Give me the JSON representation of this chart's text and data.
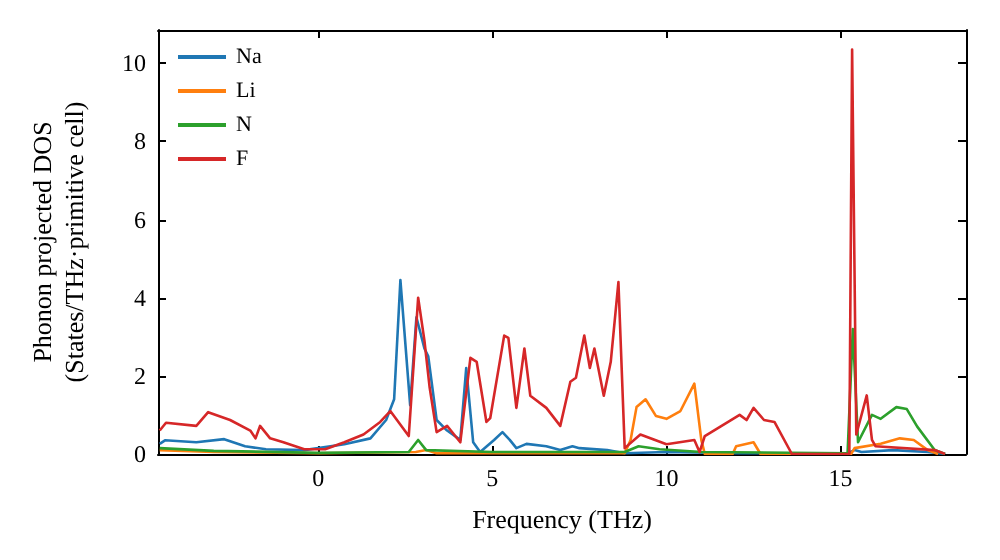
{
  "chart_data": {
    "type": "line",
    "xlabel": "Frequency (THz)",
    "ylabel": "Phonon projected DOS\n(States/THz·primitive cell)",
    "xlim": [
      -4.6,
      18.6
    ],
    "ylim": [
      0,
      10.85
    ],
    "xticks": [
      0,
      5,
      10,
      15
    ],
    "yticks": [
      0,
      2,
      4,
      6,
      8,
      10
    ],
    "grid": false,
    "legend": "top left",
    "marker": "none",
    "line_style": "solid",
    "series": [
      {
        "name": "Na",
        "color": "#1f77b4",
        "x": [
          -4.55,
          -4.4,
          -3.5,
          -2.7,
          -2.1,
          -1.5,
          -0.4,
          0.75,
          1.5,
          1.95,
          2.18,
          2.36,
          2.64,
          2.82,
          3.05,
          3.16,
          3.4,
          3.7,
          4.08,
          4.25,
          4.45,
          4.65,
          5.05,
          5.29,
          5.5,
          5.69,
          5.98,
          6.55,
          6.95,
          7.3,
          7.5,
          8.3,
          8.8,
          10,
          12,
          15.2,
          15.4,
          15.6,
          16.5,
          17.5,
          18
        ],
        "values": [
          0.26,
          0.35,
          0.3,
          0.38,
          0.2,
          0.12,
          0.1,
          0.25,
          0.4,
          0.87,
          1.4,
          4.45,
          1.25,
          3.5,
          2.7,
          2.5,
          0.87,
          0.6,
          0.36,
          2.2,
          0.3,
          0.05,
          0.36,
          0.56,
          0.36,
          0.15,
          0.26,
          0.2,
          0.1,
          0.2,
          0.15,
          0.1,
          0.02,
          0.05,
          0.02,
          0.02,
          0.1,
          0.05,
          0.1,
          0.05,
          0
        ]
      },
      {
        "name": "Li",
        "color": "#ff7f0e",
        "x": [
          -4.55,
          -3,
          0,
          2.8,
          3.1,
          3.4,
          8.8,
          8.97,
          9.14,
          9.4,
          9.7,
          10.0,
          10.4,
          10.8,
          11.0,
          11.1,
          11.9,
          12.0,
          12.5,
          12.7,
          15.3,
          15.4,
          16.15,
          16.7,
          17.1,
          17.5,
          17.8
        ],
        "values": [
          0.1,
          0.05,
          0.02,
          0.05,
          0.1,
          0.02,
          0.02,
          0.36,
          1.2,
          1.4,
          0.97,
          0.9,
          1.1,
          1.8,
          0.36,
          0,
          0,
          0.2,
          0.3,
          0,
          0,
          0.15,
          0.26,
          0.4,
          0.36,
          0.1,
          0
        ]
      },
      {
        "name": "N",
        "color": "#2ca02c",
        "x": [
          -4.55,
          -3,
          0,
          2.6,
          2.87,
          3.1,
          5,
          8.8,
          9.2,
          9.8,
          11,
          15.2,
          15.35,
          15.5,
          15.9,
          16.15,
          16.6,
          16.9,
          17.2,
          17.7,
          18
        ],
        "values": [
          0.15,
          0.08,
          0.03,
          0.05,
          0.36,
          0.1,
          0.05,
          0.05,
          0.2,
          0.12,
          0.05,
          0.02,
          3.2,
          0.3,
          1.0,
          0.9,
          1.2,
          1.15,
          0.7,
          0.1,
          0
        ]
      },
      {
        "name": "F",
        "color": "#d62728",
        "x": [
          -4.55,
          -4.37,
          -3.5,
          -3.16,
          -2.53,
          -1.95,
          -1.8,
          -1.67,
          -1.38,
          -1.0,
          -0.4,
          0.2,
          0.75,
          1.3,
          1.78,
          2.07,
          2.6,
          2.87,
          3.05,
          3.2,
          3.4,
          3.7,
          4.08,
          4.37,
          4.55,
          4.83,
          4.94,
          5.34,
          5.46,
          5.69,
          5.92,
          6.09,
          6.55,
          6.95,
          7.24,
          7.4,
          7.64,
          7.8,
          7.93,
          8.2,
          8.4,
          8.62,
          8.8,
          9.25,
          10.0,
          10.8,
          10.95,
          11.1,
          12.1,
          12.3,
          12.5,
          12.8,
          13.1,
          13.6,
          15.25,
          15.33,
          15.45,
          15.75,
          15.9,
          16.0,
          17.7,
          18.0
        ],
        "values": [
          0.6,
          0.8,
          0.72,
          1.07,
          0.87,
          0.6,
          0.4,
          0.72,
          0.4,
          0.3,
          0.12,
          0.12,
          0.3,
          0.5,
          0.82,
          1.1,
          0.46,
          4.0,
          2.9,
          1.7,
          0.56,
          0.72,
          0.3,
          2.46,
          2.36,
          0.82,
          0.92,
          3.03,
          2.97,
          1.18,
          2.7,
          1.49,
          1.18,
          0.72,
          1.85,
          1.95,
          3.03,
          2.2,
          2.7,
          1.49,
          2.36,
          4.4,
          0.15,
          0.5,
          0.25,
          0.36,
          0.05,
          0.46,
          1.0,
          0.87,
          1.18,
          0.87,
          0.82,
          0,
          0,
          10.35,
          0.5,
          1.5,
          0.36,
          0.2,
          0.1,
          0
        ]
      }
    ]
  }
}
